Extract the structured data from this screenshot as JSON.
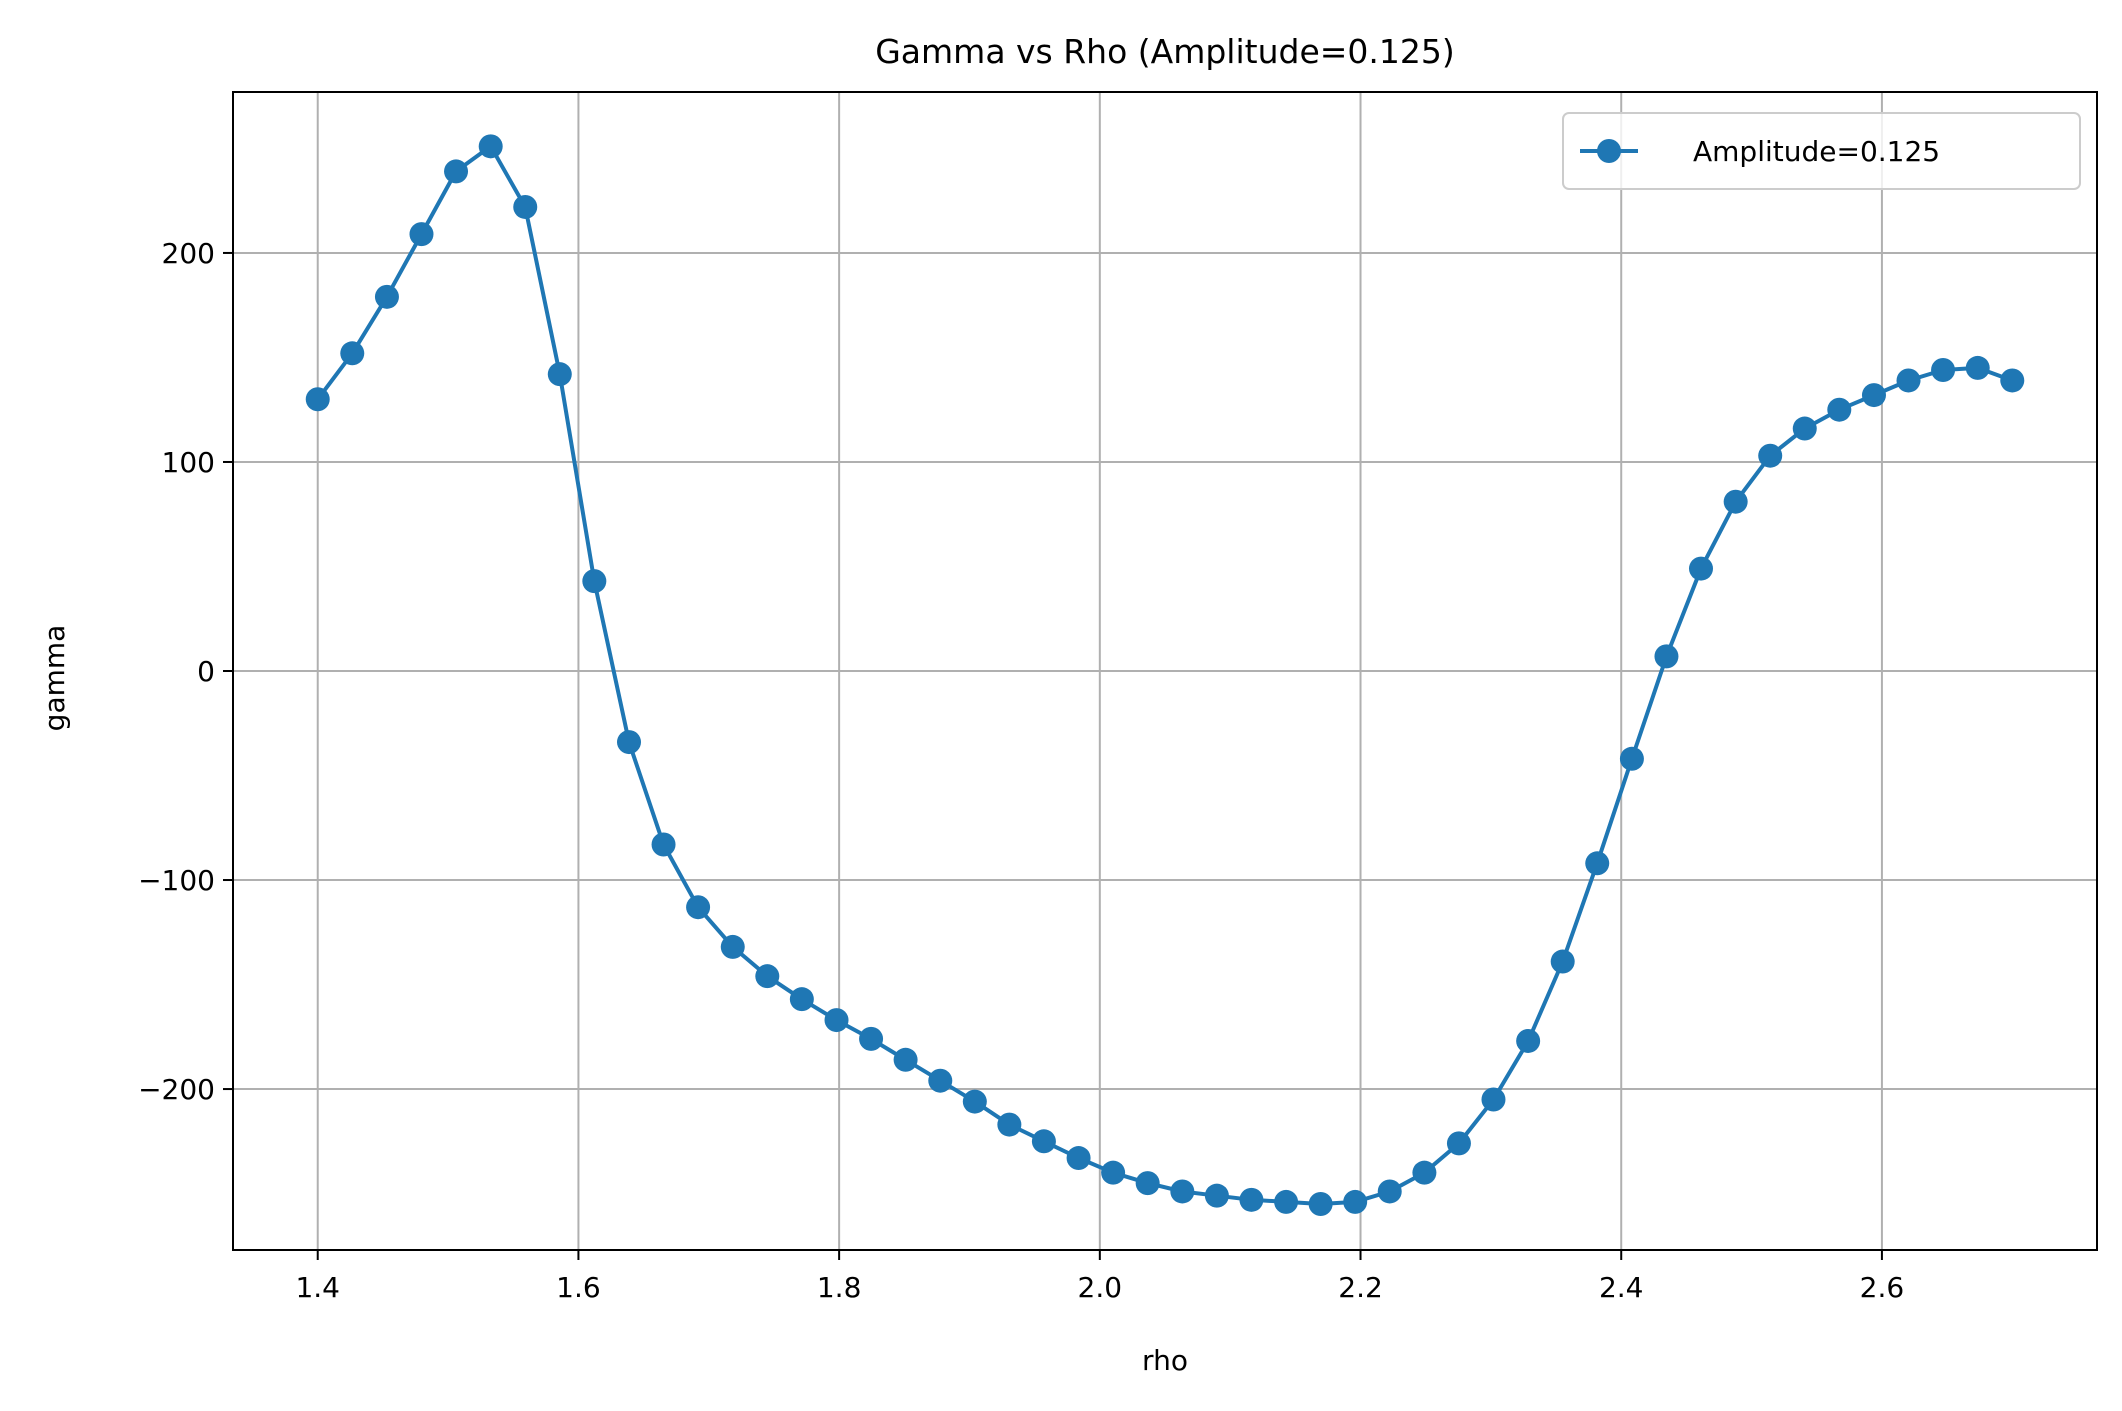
{
  "chart_data": {
    "type": "line",
    "title": "Gamma vs Rho (Amplitude=0.125)",
    "xlabel": "rho",
    "ylabel": "gamma",
    "xlim": [
      1.335,
      2.765
    ],
    "ylim": [
      -277,
      277
    ],
    "xticks": [
      1.4,
      1.6,
      1.8,
      2.0,
      2.2,
      2.4,
      2.6
    ],
    "xtick_labels": [
      "1.4",
      "1.6",
      "1.8",
      "2.0",
      "2.2",
      "2.4",
      "2.6"
    ],
    "yticks": [
      200,
      100,
      0,
      -100,
      -200
    ],
    "ytick_labels": [
      "200",
      "100",
      "0",
      "−100",
      "−200"
    ],
    "grid": true,
    "legend_position": "top-right",
    "series": [
      {
        "name": "Amplitude=0.125",
        "color": "#1f77b4",
        "marker": "circle",
        "x": [
          1.4,
          1.4265,
          1.4531,
          1.4796,
          1.5061,
          1.5327,
          1.5592,
          1.5857,
          1.6122,
          1.6388,
          1.6653,
          1.6918,
          1.7184,
          1.7449,
          1.7714,
          1.798,
          1.8245,
          1.851,
          1.8776,
          1.9041,
          1.9306,
          1.9571,
          1.9837,
          2.0102,
          2.0367,
          2.0633,
          2.0898,
          2.1163,
          2.1429,
          2.1694,
          2.1959,
          2.2224,
          2.249,
          2.2755,
          2.302,
          2.3286,
          2.3551,
          2.3816,
          2.4082,
          2.4347,
          2.4612,
          2.4878,
          2.5143,
          2.5408,
          2.5673,
          2.5939,
          2.6204,
          2.6469,
          2.6735,
          2.7
        ],
        "y": [
          130,
          152,
          179,
          209,
          239,
          251,
          222,
          142,
          43,
          -34,
          -83,
          -113,
          -132,
          -146,
          -157,
          -167,
          -176,
          -186,
          -196,
          -206,
          -217,
          -225,
          -233,
          -240,
          -245,
          -249,
          -251,
          -253,
          -254,
          -255,
          -254,
          -249,
          -240,
          -226,
          -205,
          -177,
          -139,
          -92,
          -42,
          7,
          49,
          81,
          103,
          116,
          125,
          132,
          139,
          144,
          145,
          139
        ]
      }
    ]
  }
}
